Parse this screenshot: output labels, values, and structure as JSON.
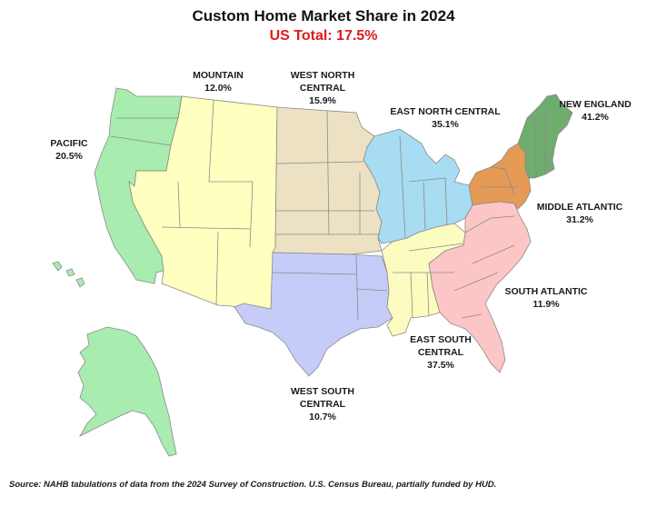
{
  "title": "Custom Home Market Share in 2024",
  "subtitle": "US Total: 17.5%",
  "regions": [
    {
      "key": "mountain",
      "name": "MOUNTAIN",
      "value": "12.0%",
      "color": "#ffffc0"
    },
    {
      "key": "west_north_central",
      "name_line1": "WEST NORTH",
      "name_line2": "CENTRAL",
      "value": "15.9%",
      "color": "#ede1c4"
    },
    {
      "key": "east_north_central",
      "name": "EAST NORTH CENTRAL",
      "value": "35.1%",
      "color": "#a8dcf2"
    },
    {
      "key": "new_england",
      "name": "NEW ENGLAND",
      "value": "41.2%",
      "color": "#6fad6e"
    },
    {
      "key": "pacific",
      "name": "PACIFIC",
      "value": "20.5%",
      "color": "#a8ecb0"
    },
    {
      "key": "middle_atlantic",
      "name": "MIDDLE ATLANTIC",
      "value": "31.2%",
      "color": "#e59a55"
    },
    {
      "key": "south_atlantic",
      "name": "SOUTH ATLANTIC",
      "value": "11.9%",
      "color": "#fdc6c6"
    },
    {
      "key": "east_south_central",
      "name_line1": "EAST SOUTH",
      "name_line2": "CENTRAL",
      "value": "37.5%",
      "color": "#fdfcc0"
    },
    {
      "key": "west_south_central",
      "name_line1": "WEST SOUTH",
      "name_line2": "CENTRAL",
      "value": "10.7%",
      "color": "#c6ccf7"
    }
  ],
  "source": "Source: NAHB tabulations of data from the 2024 Survey of Construction. U.S. Census Bureau, partially funded by HUD."
}
